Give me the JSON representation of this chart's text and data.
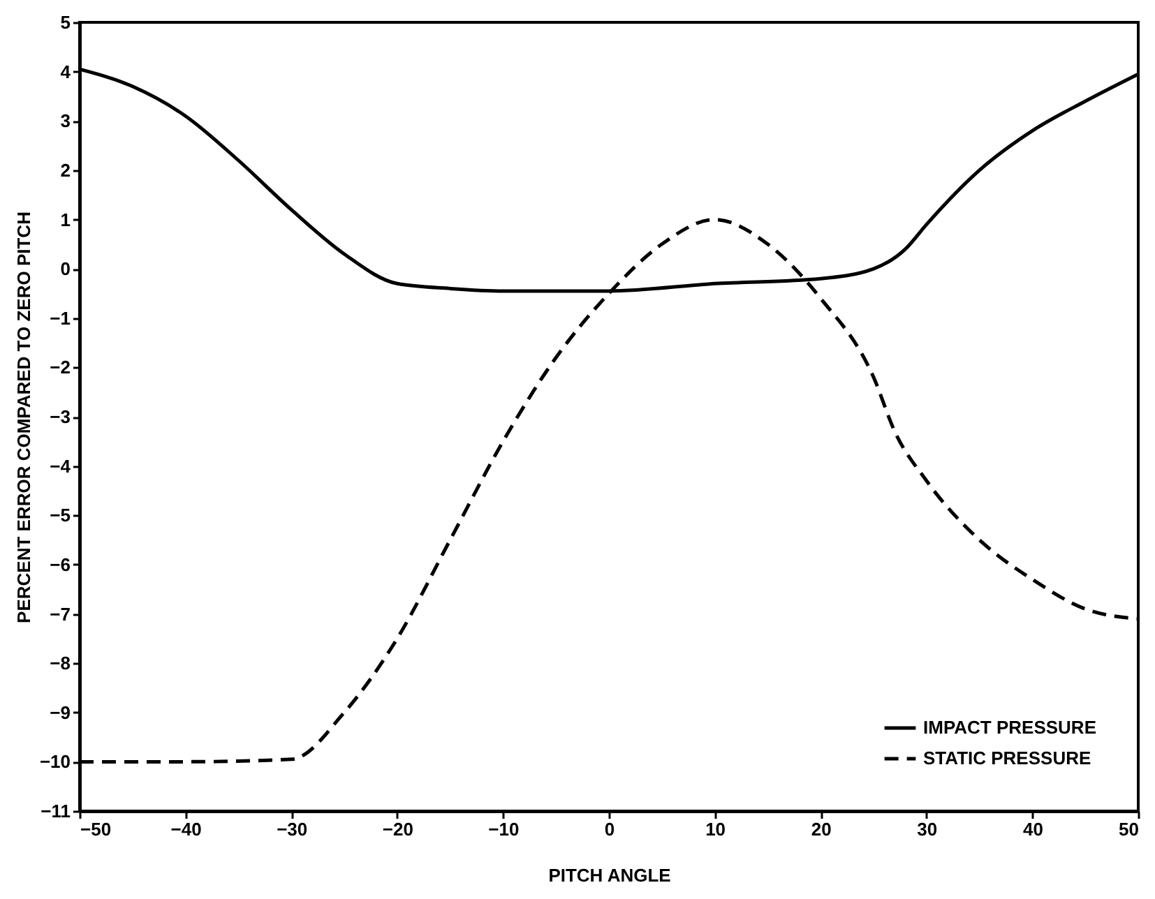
{
  "chart_data": {
    "type": "line",
    "xlabel": "PITCH ANGLE",
    "ylabel": "PERCENT ERROR COMPARED TO ZERO PITCH",
    "xlim": [
      -50,
      50
    ],
    "ylim": [
      -11,
      5
    ],
    "xticks": [
      -50,
      -40,
      -30,
      -20,
      -10,
      0,
      10,
      20,
      30,
      40,
      50
    ],
    "yticks": [
      -11,
      -10,
      -9,
      -8,
      -7,
      -6,
      -5,
      -4,
      -3,
      -2,
      -1,
      0,
      1,
      2,
      3,
      4,
      5
    ],
    "grid": false,
    "legend": "bottom right",
    "marker": "none",
    "series": [
      {
        "name": "IMPACT PRESSURE",
        "color": "#000000",
        "line_style": "solid",
        "x": [
          -50,
          -45,
          -40,
          -35,
          -30,
          -25,
          -20,
          -15,
          -10,
          0,
          10,
          20,
          25,
          28,
          30,
          35,
          40,
          45,
          50
        ],
        "values": [
          4.05,
          3.7,
          3.1,
          2.2,
          1.2,
          0.3,
          -0.3,
          -0.4,
          -0.45,
          -0.45,
          -0.3,
          -0.2,
          0,
          0.4,
          0.9,
          2.0,
          2.8,
          3.4,
          3.95
        ]
      },
      {
        "name": "STATIC PRESSURE",
        "color": "#000000",
        "line_style": "dashed",
        "x": [
          -50,
          -40,
          -30,
          -25,
          -20,
          -15,
          -10,
          -5,
          0,
          5,
          10,
          15,
          20,
          25,
          27,
          30,
          35,
          40,
          45,
          50
        ],
        "values": [
          -10,
          -10,
          -9.95,
          -9.0,
          -7.5,
          -5.5,
          -3.5,
          -1.8,
          -0.5,
          0.5,
          1.0,
          0.5,
          -0.6,
          -2.2,
          -3.3,
          -4.3,
          -5.5,
          -6.3,
          -6.9,
          -7.1
        ]
      }
    ]
  }
}
